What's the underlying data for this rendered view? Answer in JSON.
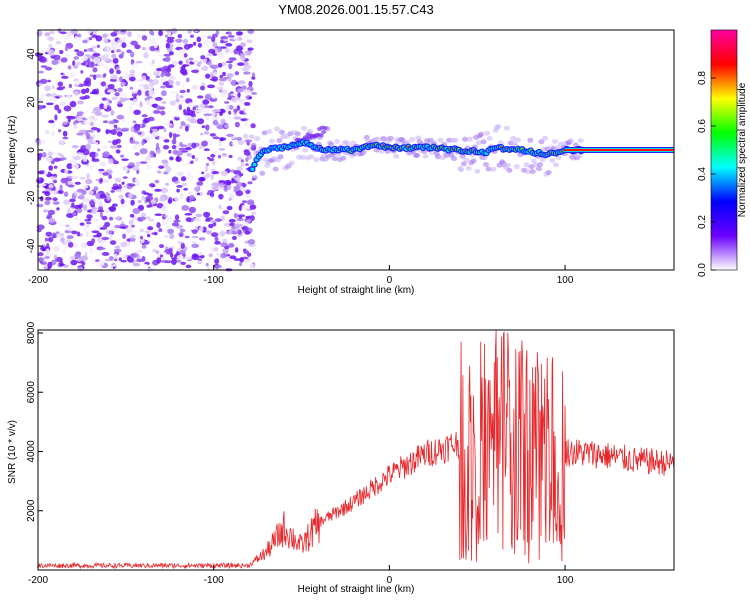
{
  "title": "YM08.2026.001.15.57.C43",
  "chart_data": [
    {
      "type": "heatmap",
      "name": "spectrogram",
      "xlabel": "Height of straight line (km)",
      "ylabel": "Frequency (Hz)",
      "xlim": [
        -200,
        162
      ],
      "ylim": [
        -50,
        50
      ],
      "xticks": [
        -200,
        -100,
        0,
        100
      ],
      "yticks": [
        -40,
        -20,
        0,
        20,
        40
      ],
      "noise_region_x": [
        -200,
        -77
      ],
      "signal_track": [
        {
          "x": -78,
          "y": -8
        },
        {
          "x": -75,
          "y": -3
        },
        {
          "x": -70,
          "y": 0
        },
        {
          "x": -62,
          "y": 1
        },
        {
          "x": -55,
          "y": 2
        },
        {
          "x": -48,
          "y": 3
        },
        {
          "x": -42,
          "y": 1
        },
        {
          "x": -35,
          "y": 0
        },
        {
          "x": -20,
          "y": 0
        },
        {
          "x": -10,
          "y": 2
        },
        {
          "x": 0,
          "y": 1
        },
        {
          "x": 20,
          "y": 1
        },
        {
          "x": 40,
          "y": 0
        },
        {
          "x": 55,
          "y": -1
        },
        {
          "x": 60,
          "y": 1
        },
        {
          "x": 75,
          "y": 0
        },
        {
          "x": 90,
          "y": -2
        },
        {
          "x": 100,
          "y": 0
        },
        {
          "x": 162,
          "y": 0
        }
      ],
      "colorbar": {
        "label": "Normalized spectral amplitude",
        "range": [
          0,
          1
        ],
        "ticks": [
          0.0,
          0.2,
          0.4,
          0.6,
          0.8
        ],
        "tick_labels": [
          "0.0",
          "0.2",
          "0.4",
          "0.6",
          "0.8"
        ],
        "colormap": [
          "#ffffff",
          "#6a00ff",
          "#0000ff",
          "#00ffff",
          "#00ff00",
          "#ffff00",
          "#ff0000",
          "#ff00a0"
        ]
      }
    },
    {
      "type": "line",
      "name": "snr",
      "xlabel": "Height of straight line (km)",
      "ylabel": "SNR (10 * v/v)",
      "xlim": [
        -200,
        162
      ],
      "ylim": [
        0,
        8100
      ],
      "xticks": [
        -200,
        -100,
        0,
        100
      ],
      "yticks": [
        2000,
        4000,
        6000,
        8000
      ],
      "color": "#e8262a",
      "envelope": [
        {
          "x": -200,
          "y": 150
        },
        {
          "x": -80,
          "y": 150
        },
        {
          "x": -70,
          "y": 600
        },
        {
          "x": -60,
          "y": 1400
        },
        {
          "x": -50,
          "y": 800
        },
        {
          "x": -40,
          "y": 1600
        },
        {
          "x": -20,
          "y": 2300
        },
        {
          "x": 0,
          "y": 3200
        },
        {
          "x": 20,
          "y": 3900
        },
        {
          "x": 40,
          "y": 4300
        },
        {
          "x": 50,
          "y": 4300
        },
        {
          "x": 60,
          "y": 4500
        },
        {
          "x": 70,
          "y": 4400
        },
        {
          "x": 80,
          "y": 4200
        },
        {
          "x": 100,
          "y": 4000
        },
        {
          "x": 120,
          "y": 3900
        },
        {
          "x": 140,
          "y": 3700
        },
        {
          "x": 162,
          "y": 3600
        }
      ]
    }
  ]
}
